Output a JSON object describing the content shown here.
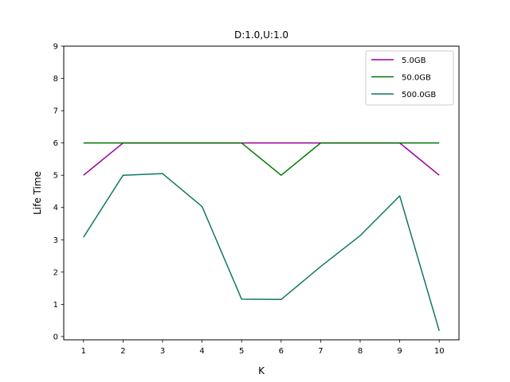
{
  "chart_data": {
    "type": "line",
    "title": "D:1.0,U:1.0",
    "xlabel": "K",
    "ylabel": "Life Time",
    "x": [
      1,
      2,
      3,
      4,
      5,
      6,
      7,
      8,
      9,
      10
    ],
    "xlim": [
      0.5,
      10.5
    ],
    "ylim": [
      -0.1,
      9
    ],
    "yticks": [
      0,
      1,
      2,
      3,
      4,
      5,
      6,
      7,
      8,
      9
    ],
    "xticks": [
      1,
      2,
      3,
      4,
      5,
      6,
      7,
      8,
      9,
      10
    ],
    "grid": false,
    "legend_position": "top-right",
    "series": [
      {
        "name": "5.0GB",
        "color": "#990099",
        "values": [
          5,
          6,
          6,
          6,
          6,
          6,
          6,
          6,
          6,
          5
        ]
      },
      {
        "name": "50.0GB",
        "color": "#007700",
        "values": [
          6,
          6,
          6,
          6,
          6,
          5,
          6,
          6,
          6,
          6
        ]
      },
      {
        "name": "500.0GB",
        "color": "#117766",
        "values": [
          3.08,
          5.0,
          5.05,
          4.03,
          1.16,
          1.15,
          2.17,
          3.13,
          4.36,
          0.18
        ]
      }
    ]
  }
}
